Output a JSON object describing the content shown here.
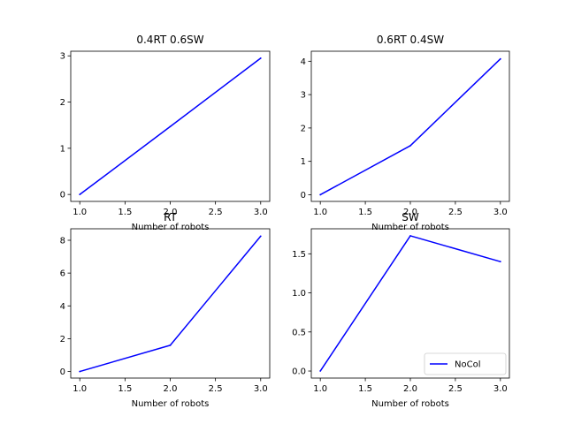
{
  "chart_data": [
    {
      "type": "line",
      "title": "0.4RT 0.6SW",
      "xlabel": "Number of robots",
      "ylabel": "",
      "x": [
        1,
        2,
        3
      ],
      "xlim": [
        0.9,
        3.1
      ],
      "ylim": [
        -0.15,
        3.1
      ],
      "xticks": [
        1.0,
        1.5,
        2.0,
        2.5,
        3.0
      ],
      "xtick_labels": [
        "1.0",
        "1.5",
        "2.0",
        "2.5",
        "3.0"
      ],
      "yticks": [
        0,
        1,
        2,
        3
      ],
      "ytick_labels": [
        "0",
        "1",
        "2",
        "3"
      ],
      "grid": false,
      "legend": false,
      "series": [
        {
          "values": [
            0.0,
            1.47,
            2.95
          ],
          "color": "#0000ff"
        }
      ]
    },
    {
      "type": "line",
      "title": "0.6RT 0.4SW",
      "xlabel": "Number of robots",
      "ylabel": "",
      "x": [
        1,
        2,
        3
      ],
      "xlim": [
        0.9,
        3.1
      ],
      "ylim": [
        -0.2,
        4.3
      ],
      "xticks": [
        1.0,
        1.5,
        2.0,
        2.5,
        3.0
      ],
      "xtick_labels": [
        "1.0",
        "1.5",
        "2.0",
        "2.5",
        "3.0"
      ],
      "yticks": [
        0,
        1,
        2,
        3,
        4
      ],
      "ytick_labels": [
        "0",
        "1",
        "2",
        "3",
        "4"
      ],
      "grid": false,
      "legend": false,
      "series": [
        {
          "values": [
            0.0,
            1.47,
            4.07
          ],
          "color": "#0000ff"
        }
      ]
    },
    {
      "type": "line",
      "title": "RT",
      "xlabel": "Number of robots",
      "ylabel": "",
      "x": [
        1,
        2,
        3
      ],
      "xlim": [
        0.9,
        3.1
      ],
      "ylim": [
        -0.4,
        8.7
      ],
      "xticks": [
        1.0,
        1.5,
        2.0,
        2.5,
        3.0
      ],
      "xtick_labels": [
        "1.0",
        "1.5",
        "2.0",
        "2.5",
        "3.0"
      ],
      "yticks": [
        0,
        2,
        4,
        6,
        8
      ],
      "ytick_labels": [
        "0",
        "2",
        "4",
        "6",
        "8"
      ],
      "grid": false,
      "legend": false,
      "series": [
        {
          "values": [
            0.0,
            1.6,
            8.25
          ],
          "color": "#0000ff"
        }
      ]
    },
    {
      "type": "line",
      "title": "SW",
      "xlabel": "Number of robots",
      "ylabel": "",
      "x": [
        1,
        2,
        3
      ],
      "xlim": [
        0.9,
        3.1
      ],
      "ylim": [
        -0.09,
        1.82
      ],
      "xticks": [
        1.0,
        1.5,
        2.0,
        2.5,
        3.0
      ],
      "xtick_labels": [
        "1.0",
        "1.5",
        "2.0",
        "2.5",
        "3.0"
      ],
      "yticks": [
        0.0,
        0.5,
        1.0,
        1.5
      ],
      "ytick_labels": [
        "0.0",
        "0.5",
        "1.0",
        "1.5"
      ],
      "grid": false,
      "legend": "lower right",
      "series": [
        {
          "name": "NoCol",
          "values": [
            0.0,
            1.73,
            1.4
          ],
          "color": "#0000ff"
        }
      ]
    }
  ]
}
